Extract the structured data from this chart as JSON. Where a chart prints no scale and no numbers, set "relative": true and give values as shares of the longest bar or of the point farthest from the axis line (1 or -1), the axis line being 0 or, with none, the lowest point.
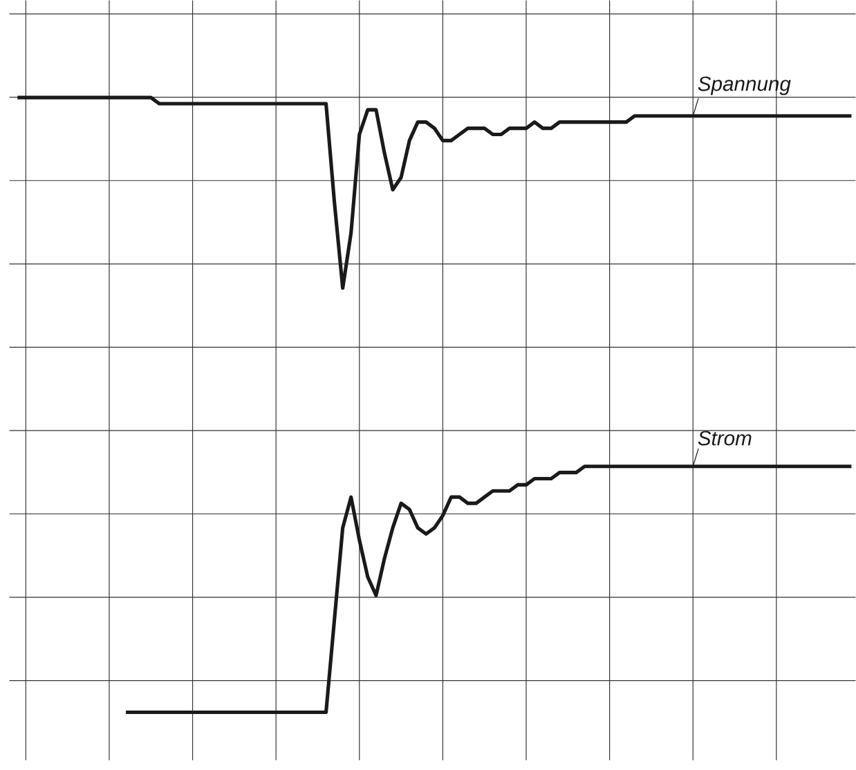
{
  "chart_data": {
    "type": "line",
    "relative": true,
    "grid": true,
    "line_style": "solid",
    "categories": [
      null,
      null,
      null,
      null,
      null,
      null,
      null,
      null,
      null,
      null,
      null,
      null,
      null,
      null,
      null,
      null,
      null,
      null,
      null,
      null,
      null,
      null,
      null,
      null,
      null,
      null,
      null,
      null,
      null,
      null,
      null,
      null,
      null,
      null,
      null,
      null,
      null,
      null,
      null,
      null,
      null,
      null,
      null,
      null,
      null,
      null,
      null,
      null,
      null,
      null,
      null,
      null,
      null,
      null,
      null,
      null,
      null,
      null,
      null,
      null,
      null,
      null,
      null,
      null,
      null,
      null,
      null,
      null,
      null,
      null,
      null,
      null,
      null,
      null,
      null,
      null,
      null,
      null,
      null,
      null,
      null,
      null,
      null,
      null,
      null,
      null,
      null,
      null,
      null,
      null,
      null,
      null,
      null,
      null,
      null,
      null,
      null,
      null,
      null,
      null,
      null
    ],
    "series": [
      {
        "name": "Spannung",
        "color": "#1a1a1a",
        "values": [
          1.0,
          1.0,
          1.0,
          1.0,
          1.0,
          1.0,
          1.0,
          1.0,
          1.0,
          1.0,
          1.0,
          1.0,
          1.0,
          1.0,
          1.0,
          1.0,
          1.0,
          0.99,
          0.99,
          0.99,
          0.99,
          0.99,
          0.99,
          0.99,
          0.99,
          0.99,
          0.99,
          0.99,
          0.99,
          0.99,
          0.99,
          0.99,
          0.99,
          0.99,
          0.99,
          0.99,
          0.99,
          0.99,
          0.83,
          0.69,
          0.78,
          0.94,
          0.98,
          0.98,
          0.91,
          0.85,
          0.87,
          0.93,
          0.96,
          0.96,
          0.95,
          0.93,
          0.93,
          0.94,
          0.95,
          0.95,
          0.95,
          0.94,
          0.94,
          0.95,
          0.95,
          0.95,
          0.96,
          0.95,
          0.95,
          0.96,
          0.96,
          0.96,
          0.96,
          0.96,
          0.96,
          0.96,
          0.96,
          0.96,
          0.97,
          0.97,
          0.97,
          0.97,
          0.97,
          0.97,
          0.97,
          0.97,
          0.97,
          0.97,
          0.97,
          0.97,
          0.97,
          0.97,
          0.97,
          0.97,
          0.97,
          0.97,
          0.97,
          0.97,
          0.97,
          0.97,
          0.97,
          0.97,
          0.97,
          0.97,
          0.97
        ]
      },
      {
        "name": "Strom",
        "color": "#1a1a1a",
        "values": [
          null,
          null,
          null,
          null,
          null,
          null,
          null,
          null,
          null,
          null,
          null,
          null,
          null,
          0.0,
          0.0,
          0.0,
          0.0,
          0.0,
          0.0,
          0.0,
          0.0,
          0.0,
          0.0,
          0.0,
          0.0,
          0.0,
          0.0,
          0.0,
          0.0,
          0.0,
          0.0,
          0.0,
          0.0,
          0.0,
          0.0,
          0.0,
          0.0,
          0.0,
          0.15,
          0.3,
          0.35,
          0.28,
          0.22,
          0.19,
          0.25,
          0.3,
          0.34,
          0.33,
          0.3,
          0.29,
          0.3,
          0.32,
          0.35,
          0.35,
          0.34,
          0.34,
          0.35,
          0.36,
          0.36,
          0.36,
          0.37,
          0.37,
          0.38,
          0.38,
          0.38,
          0.39,
          0.39,
          0.39,
          0.4,
          0.4,
          0.4,
          0.4,
          0.4,
          0.4,
          0.4,
          0.4,
          0.4,
          0.4,
          0.4,
          0.4,
          0.4,
          0.4,
          0.4,
          0.4,
          0.4,
          0.4,
          0.4,
          0.4,
          0.4,
          0.4,
          0.4,
          0.4,
          0.4,
          0.4,
          0.4,
          0.4,
          0.4,
          0.4,
          0.4,
          0.4,
          0.4
        ]
      }
    ]
  }
}
